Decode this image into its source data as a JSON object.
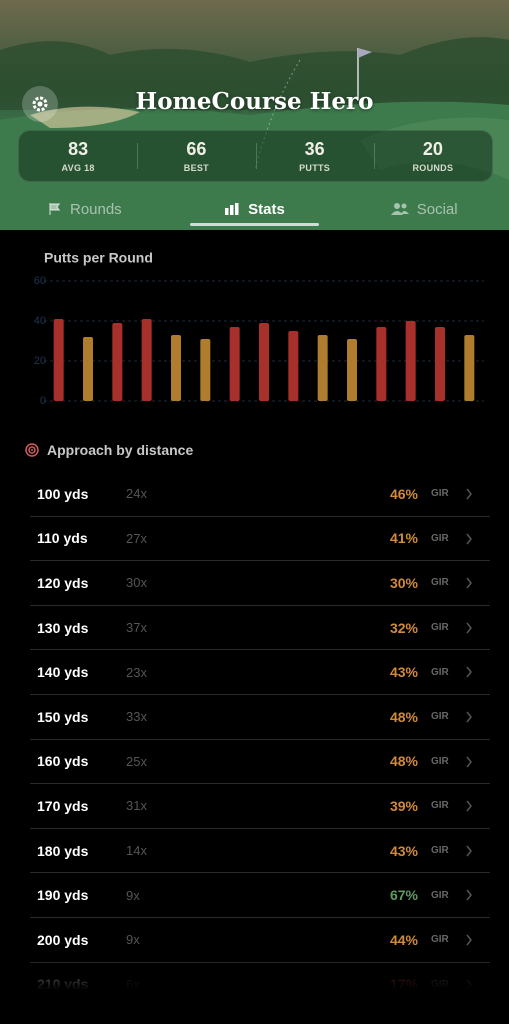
{
  "header": {
    "title": "HomeCourse Hero",
    "stats": [
      {
        "value": "83",
        "label": "AVG 18"
      },
      {
        "value": "66",
        "label": "BEST"
      },
      {
        "value": "36",
        "label": "PUTTS"
      },
      {
        "value": "20",
        "label": "ROUNDS"
      }
    ]
  },
  "tabs": [
    "Rounds",
    "Stats",
    "Social"
  ],
  "chart_data": {
    "type": "bar",
    "title": "Putts per Round",
    "values": [
      41,
      32,
      39,
      41,
      33,
      31,
      37,
      39,
      35,
      33,
      31,
      37,
      40,
      37,
      33
    ],
    "colors": [
      "#a8302b",
      "#b07d2e",
      "#a8302b",
      "#a8302b",
      "#b07d2e",
      "#b07d2e",
      "#a8302b",
      "#a8302b",
      "#a8302b",
      "#b07d2e",
      "#b07d2e",
      "#a8302b",
      "#a8302b",
      "#a8302b",
      "#b07d2e"
    ],
    "ylim": [
      0,
      60
    ],
    "yticks": [
      0,
      20,
      40,
      60
    ],
    "grid": true
  },
  "approach": {
    "title": "Approach by distance",
    "rows": [
      {
        "distance": "100 yds",
        "count": "24x",
        "pct": "46%",
        "unit": "GIR",
        "color": "#d18a3c"
      },
      {
        "distance": "110 yds",
        "count": "27x",
        "pct": "41%",
        "unit": "GIR",
        "color": "#d18a3c"
      },
      {
        "distance": "120 yds",
        "count": "30x",
        "pct": "30%",
        "unit": "GIR",
        "color": "#d18a3c"
      },
      {
        "distance": "130 yds",
        "count": "37x",
        "pct": "32%",
        "unit": "GIR",
        "color": "#d18a3c"
      },
      {
        "distance": "140 yds",
        "count": "23x",
        "pct": "43%",
        "unit": "GIR",
        "color": "#d18a3c"
      },
      {
        "distance": "150 yds",
        "count": "33x",
        "pct": "48%",
        "unit": "GIR",
        "color": "#d18a3c"
      },
      {
        "distance": "160 yds",
        "count": "25x",
        "pct": "48%",
        "unit": "GIR",
        "color": "#d18a3c"
      },
      {
        "distance": "170 yds",
        "count": "31x",
        "pct": "39%",
        "unit": "GIR",
        "color": "#d18a3c"
      },
      {
        "distance": "180 yds",
        "count": "14x",
        "pct": "43%",
        "unit": "GIR",
        "color": "#d18a3c"
      },
      {
        "distance": "190 yds",
        "count": "9x",
        "pct": "67%",
        "unit": "GIR",
        "color": "#5f9a62"
      },
      {
        "distance": "200 yds",
        "count": "9x",
        "pct": "44%",
        "unit": "GIR",
        "color": "#d18a3c"
      },
      {
        "distance": "210 yds",
        "count": "6x",
        "pct": "17%",
        "unit": "GIR",
        "color": "#c0392b"
      }
    ]
  }
}
